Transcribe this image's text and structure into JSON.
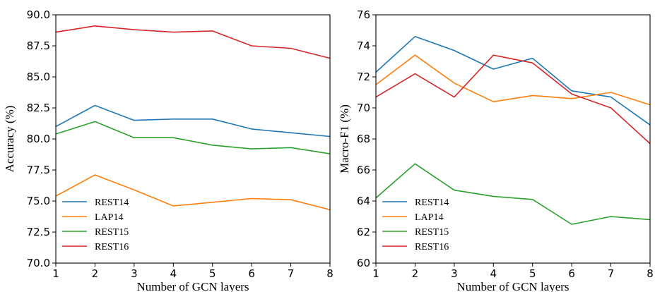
{
  "chart_data": [
    {
      "type": "line",
      "title": "",
      "xlabel": "Number of GCN layers",
      "ylabel": "Accuracy (%)",
      "x": [
        1,
        2,
        3,
        4,
        5,
        6,
        7,
        8
      ],
      "xticks": [
        "1",
        "2",
        "3",
        "4",
        "5",
        "6",
        "7",
        "8"
      ],
      "ylim": [
        70.0,
        90.0
      ],
      "yticks": [
        "70.0",
        "72.5",
        "75.0",
        "77.5",
        "80.0",
        "82.5",
        "85.0",
        "87.5",
        "90.0"
      ],
      "grid": false,
      "legend_position": "bottom-left",
      "series": [
        {
          "name": "REST14",
          "color": "#1f77b4",
          "values": [
            81.0,
            82.7,
            81.5,
            81.6,
            81.6,
            80.8,
            80.5,
            80.2
          ]
        },
        {
          "name": "LAP14",
          "color": "#ff7f0e",
          "values": [
            75.4,
            77.1,
            75.9,
            74.6,
            74.9,
            75.2,
            75.1,
            74.3
          ]
        },
        {
          "name": "REST15",
          "color": "#2ca02c",
          "values": [
            80.4,
            81.4,
            80.1,
            80.1,
            79.5,
            79.2,
            79.3,
            78.8
          ]
        },
        {
          "name": "REST16",
          "color": "#d62728",
          "values": [
            88.6,
            89.1,
            88.8,
            88.6,
            88.7,
            87.5,
            87.3,
            86.5
          ]
        }
      ]
    },
    {
      "type": "line",
      "title": "",
      "xlabel": "Number of GCN layers",
      "ylabel": "Macro-F1 (%)",
      "x": [
        1,
        2,
        3,
        4,
        5,
        6,
        7,
        8
      ],
      "xticks": [
        "1",
        "2",
        "3",
        "4",
        "5",
        "6",
        "7",
        "8"
      ],
      "ylim": [
        60,
        76
      ],
      "yticks": [
        "60",
        "62",
        "64",
        "66",
        "68",
        "70",
        "72",
        "74",
        "76"
      ],
      "grid": false,
      "legend_position": "bottom-left",
      "series": [
        {
          "name": "REST14",
          "color": "#1f77b4",
          "values": [
            72.3,
            74.6,
            73.7,
            72.5,
            73.2,
            71.1,
            70.7,
            68.9
          ]
        },
        {
          "name": "LAP14",
          "color": "#ff7f0e",
          "values": [
            71.5,
            73.4,
            71.6,
            70.4,
            70.8,
            70.6,
            71.0,
            70.2
          ]
        },
        {
          "name": "REST15",
          "color": "#2ca02c",
          "values": [
            64.2,
            66.4,
            64.7,
            64.3,
            64.1,
            62.5,
            63.0,
            62.8
          ]
        },
        {
          "name": "REST16",
          "color": "#d62728",
          "values": [
            70.7,
            72.2,
            70.7,
            73.4,
            72.9,
            70.9,
            70.0,
            67.7
          ]
        }
      ]
    }
  ]
}
